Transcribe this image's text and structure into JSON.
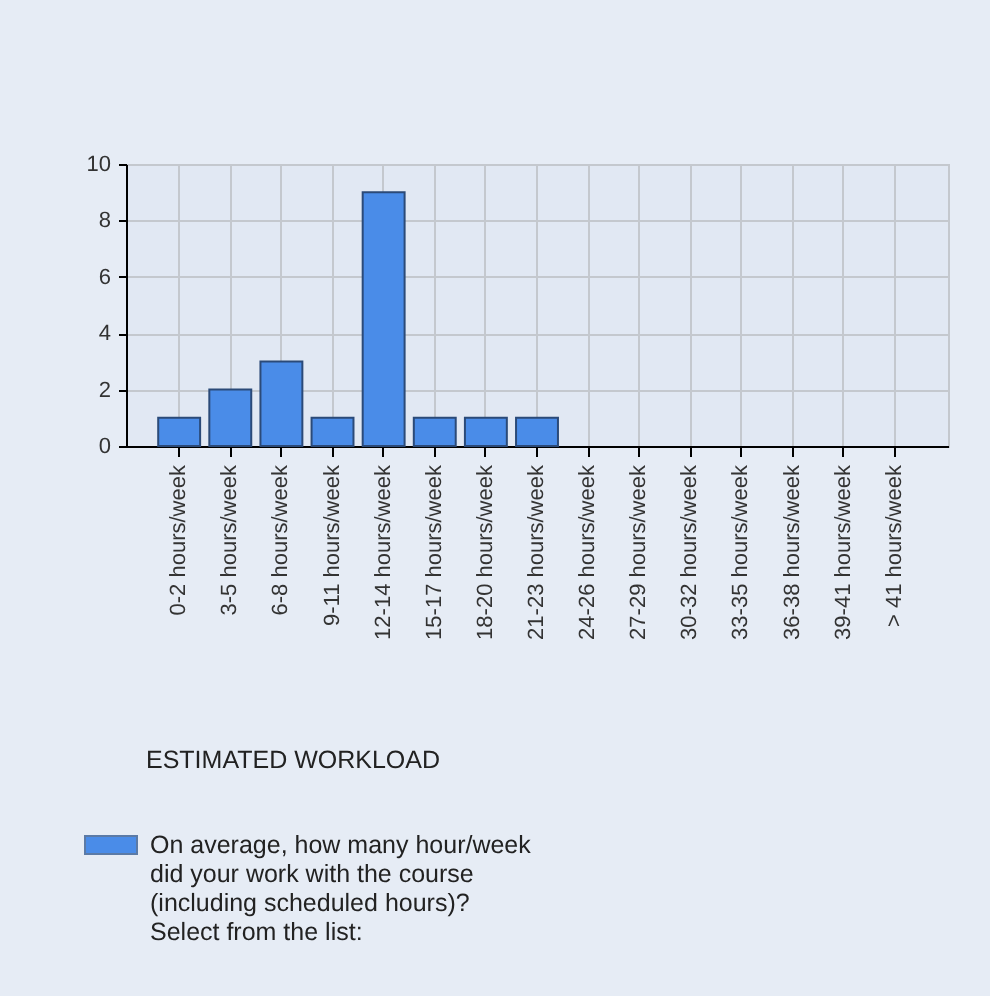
{
  "chart_data": {
    "type": "bar",
    "title": "ESTIMATED WORKLOAD",
    "categories": [
      "0-2 hours/week",
      "3-5 hours/week",
      "6-8 hours/week",
      "9-11 hours/week",
      "12-14 hours/week",
      "15-17 hours/week",
      "18-20 hours/week",
      "21-23 hours/week",
      "24-26 hours/week",
      "27-29 hours/week",
      "30-32 hours/week",
      "33-35 hours/week",
      "36-38 hours/week",
      "39-41 hours/week",
      "> 41 hours/week"
    ],
    "series": [
      {
        "name": "On average, how many hour/week did your work with the course (including scheduled hours)? Select from the list:",
        "color": "#4a8ce8",
        "values": [
          1,
          2,
          3,
          1,
          9,
          1,
          1,
          1,
          0,
          0,
          0,
          0,
          0,
          0,
          0
        ]
      }
    ],
    "ylim": [
      0,
      10
    ],
    "yticks": [
      0,
      2,
      4,
      6,
      8,
      10
    ],
    "grid": true,
    "legend": "bottom left"
  }
}
